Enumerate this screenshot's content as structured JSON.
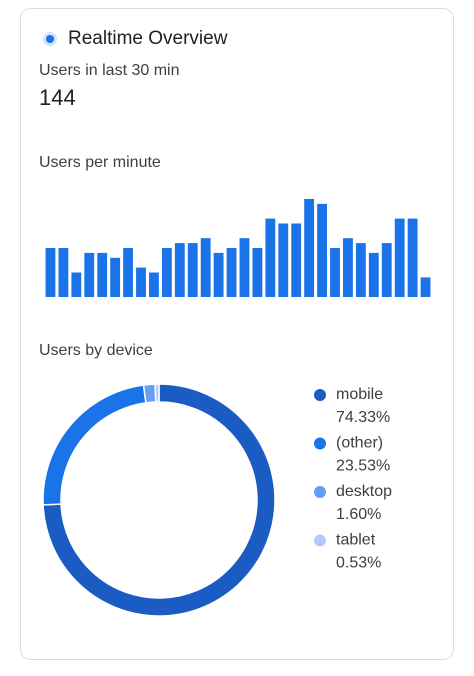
{
  "header": {
    "title": "Realtime Overview"
  },
  "active_users": {
    "label": "Users in last 30 min",
    "value": 144
  },
  "chart_data": [
    {
      "type": "bar",
      "title": "Users per minute",
      "color": "#1a73e8",
      "values": [
        10,
        10,
        5,
        9,
        9,
        8,
        10,
        6,
        5,
        10,
        11,
        11,
        12,
        9,
        10,
        12,
        10,
        16,
        15,
        15,
        20,
        19,
        10,
        12,
        11,
        9,
        11,
        16,
        16,
        4
      ]
    },
    {
      "type": "donut",
      "title": "Users by device",
      "categories": [
        "mobile",
        "(other)",
        "desktop",
        "tablet"
      ],
      "values": [
        74.33,
        23.53,
        1.6,
        0.53
      ],
      "value_labels": [
        "74.33%",
        "23.53%",
        "1.60%",
        "0.53%"
      ],
      "colors": [
        "#1a5bc4",
        "#1a73e8",
        "#669df6",
        "#aecbfa"
      ]
    }
  ]
}
